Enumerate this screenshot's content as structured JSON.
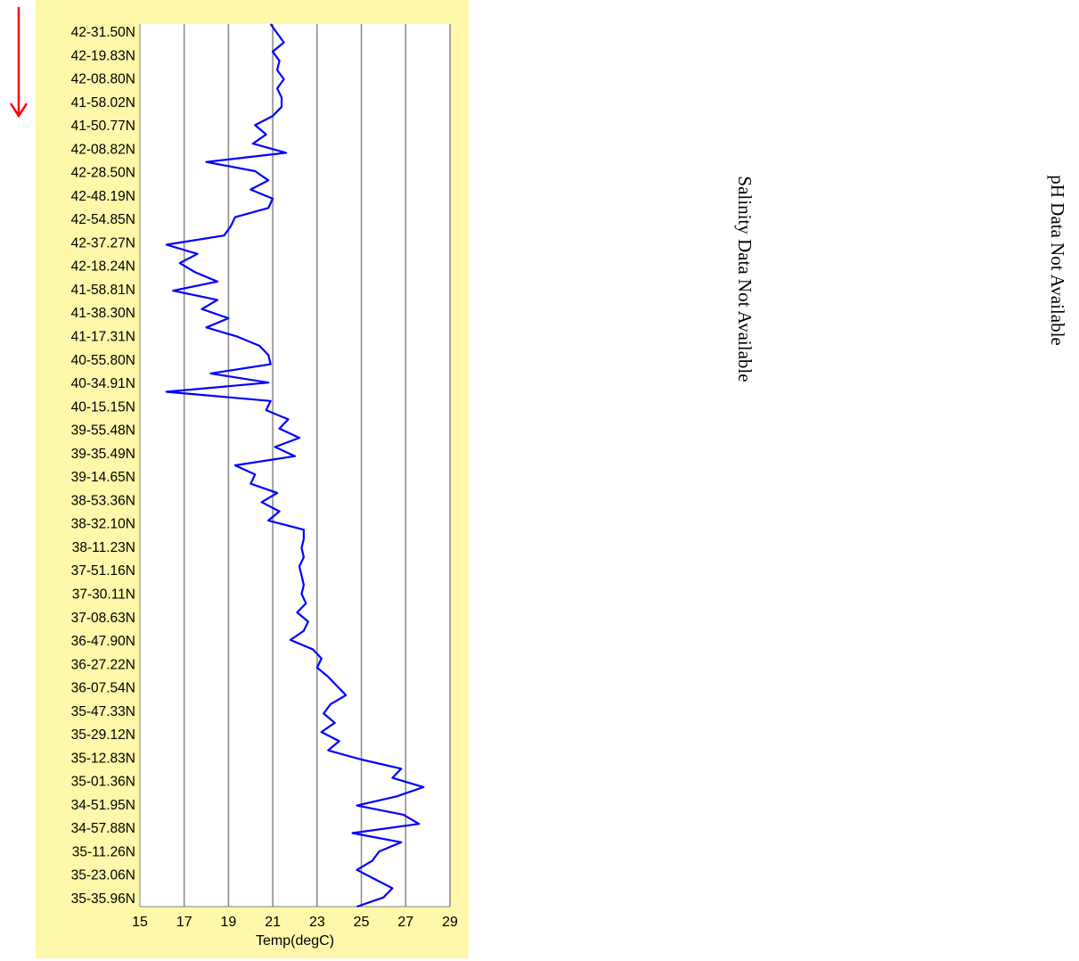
{
  "colors": {
    "panel_background": "#FFF7AA",
    "series_line": "#0000FF",
    "gridline": "#888888",
    "arrow": "#FF0000"
  },
  "direction_indicator": {
    "icon": "red-down-arrow"
  },
  "chart_data": {
    "type": "line",
    "orientation": "vertical",
    "xlabel": "Temp(degC)",
    "xlim": [
      15,
      29
    ],
    "xticks": [
      15,
      17,
      19,
      21,
      23,
      25,
      27,
      29
    ],
    "grid": {
      "vertical": true,
      "horizontal": false
    },
    "ylabel": "",
    "y_tick_labels": [
      "42-31.50N",
      "42-19.83N",
      "42-08.80N",
      "41-58.02N",
      "41-50.77N",
      "42-08.82N",
      "42-28.50N",
      "42-48.19N",
      "42-54.85N",
      "42-37.27N",
      "42-18.24N",
      "41-58.81N",
      "41-38.30N",
      "41-17.31N",
      "40-55.80N",
      "40-34.91N",
      "40-15.15N",
      "39-55.48N",
      "39-35.49N",
      "39-14.65N",
      "38-53.36N",
      "38-32.10N",
      "38-11.23N",
      "37-51.16N",
      "37-30.11N",
      "37-08.63N",
      "36-47.90N",
      "36-27.22N",
      "36-07.54N",
      "35-47.33N",
      "35-29.12N",
      "35-12.83N",
      "35-01.36N",
      "34-51.95N",
      "34-57.88N",
      "35-11.26N",
      "35-23.06N",
      "35-35.96N"
    ],
    "series": [
      {
        "values": [
          20.9,
          21.2,
          21.5,
          21.0,
          21.3,
          21.2,
          21.5,
          21.2,
          21.4,
          21.4,
          21.0,
          20.2,
          20.7,
          20.1,
          21.6,
          18.0,
          20.2,
          20.8,
          20.0,
          21.0,
          20.8,
          19.3,
          19.1,
          18.8,
          16.2,
          17.6,
          16.8,
          17.5,
          18.5,
          16.5,
          18.5,
          17.8,
          19.0,
          18.0,
          19.4,
          20.4,
          20.8,
          20.9,
          18.2,
          20.8,
          16.2,
          20.9,
          20.7,
          21.7,
          21.3,
          22.2,
          21.1,
          22.0,
          19.3,
          20.2,
          20.0,
          21.2,
          20.5,
          21.3,
          20.8,
          22.4,
          22.4,
          22.3,
          22.4,
          22.2,
          22.3,
          22.4,
          22.3,
          22.5,
          22.1,
          22.6,
          22.4,
          21.8,
          22.8,
          23.2,
          23.0,
          23.5,
          23.9,
          24.3,
          23.6,
          23.3,
          23.8,
          23.2,
          24.0,
          23.5,
          25.0,
          26.8,
          26.4,
          27.8,
          26.6,
          24.8,
          26.9,
          27.6,
          24.6,
          26.8,
          25.8,
          25.5,
          24.8,
          25.6,
          26.4,
          26.0,
          24.8
        ]
      }
    ]
  },
  "notes": {
    "salinity": "Salinity Data Not Available",
    "ph": "pH Data Not Available"
  }
}
